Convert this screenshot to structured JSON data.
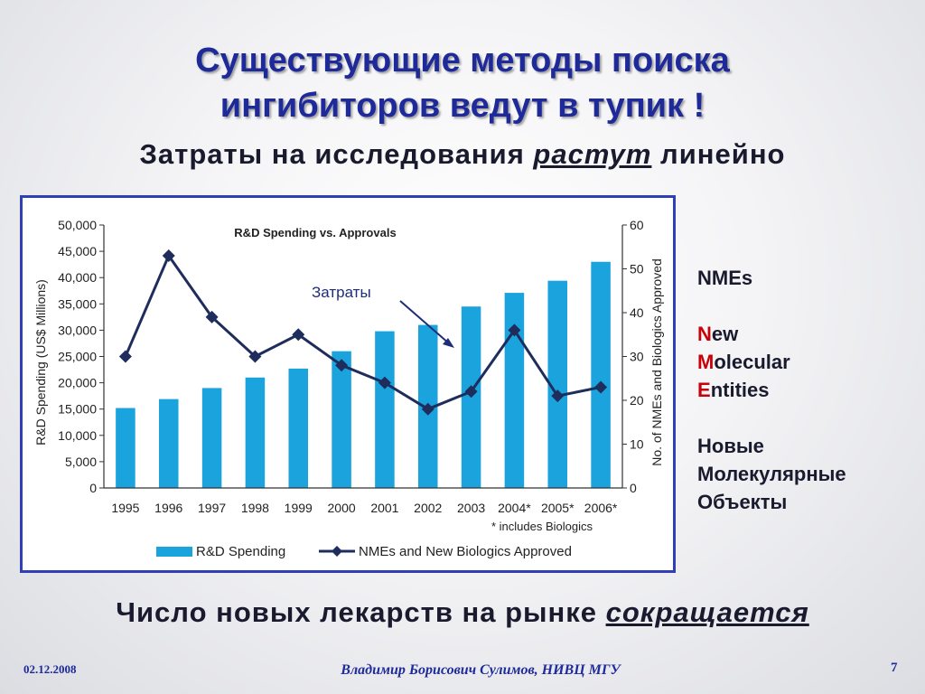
{
  "slide": {
    "title_line1": "Существующие методы поиска",
    "title_line2": "ингибиторов ведут в тупик !",
    "subtitle_pre": "Затраты на исследования ",
    "subtitle_em": "растут",
    "subtitle_post": " линейно",
    "bottom_pre": "Число новых лекарств на рынке ",
    "bottom_em": "сокращается",
    "footer_date": "02.12.2008",
    "footer_author": "Владимир Борисович Сулимов, НИВЦ МГУ",
    "footer_page": "7"
  },
  "side_panel": {
    "heading": "NMEs",
    "line1_initial": "N",
    "line1_rest": "ew",
    "line2_initial": "M",
    "line2_rest": "olecular",
    "line3_initial": "E",
    "line3_rest": "ntities",
    "ru_line1": "Новые",
    "ru_line2": "Молекулярные",
    "ru_line3": "Объекты"
  },
  "colors": {
    "title": "#1f2a9a",
    "bar": "#1aa3dc",
    "line": "#1e2d5c",
    "frame": "#2f3fb6",
    "accent_red": "#c8000a"
  },
  "chart_data": {
    "type": "bar",
    "title": "R&D Spending vs. Approvals",
    "categories": [
      "1995",
      "1996",
      "1997",
      "1998",
      "1999",
      "2000",
      "2001",
      "2002",
      "2003",
      "2004*",
      "2005*",
      "2006*"
    ],
    "footnote": "* includes Biologics",
    "series": [
      {
        "name": "R&D Spending",
        "type": "bar",
        "axis": "left",
        "values": [
          15200,
          16900,
          19000,
          21000,
          22700,
          26000,
          29800,
          31000,
          34500,
          37100,
          39400,
          43000
        ]
      },
      {
        "name": "NMEs and New Biologics Approved",
        "type": "line",
        "axis": "right",
        "values": [
          30,
          53,
          39,
          30,
          35,
          28,
          24,
          18,
          22,
          36,
          21,
          23
        ]
      }
    ],
    "y_left": {
      "label": "R&D Spending (US$ Millions)",
      "ylim": [
        0,
        50000
      ],
      "ticks": [
        "0",
        "5,000",
        "10,000",
        "15,000",
        "20,000",
        "25,000",
        "30,000",
        "35,000",
        "40,000",
        "45,000",
        "50,000"
      ]
    },
    "y_right": {
      "label": "No. of NMEs and Biologics Approved",
      "ylim": [
        0,
        60
      ],
      "ticks": [
        "0",
        "10",
        "20",
        "30",
        "40",
        "50",
        "60"
      ]
    },
    "annotation": "Затраты",
    "legend_position": "bottom"
  }
}
